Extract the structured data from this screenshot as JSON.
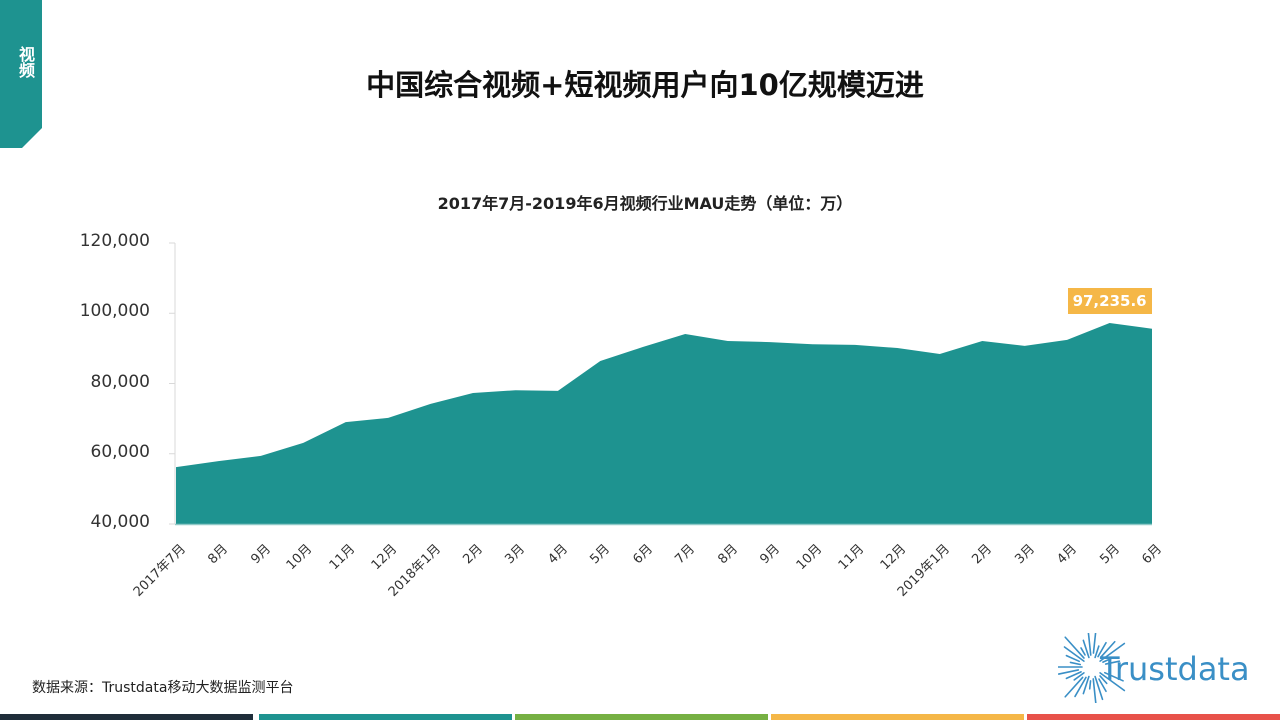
{
  "section_tab": {
    "label": "视频",
    "color": "#1e9390"
  },
  "page_title": "中国综合视频+短视频用户向10亿规模迈进",
  "chart_title": "2017年7月-2019年6月视频行业MAU走势（单位：万）",
  "highlight_label": "97,235.6",
  "source_note": "数据来源：Trustdata移动大数据监测平台",
  "logo": {
    "text": "Trustdata",
    "icon": "sunburst-icon",
    "color": "#3a8fc6"
  },
  "footer_colors": [
    "#1f2d3a",
    "#1e9390",
    "#76b043",
    "#f5b747",
    "#e8524a"
  ],
  "colors": {
    "area_fill": "#1e9390",
    "label_bg": "#f5b747",
    "axis": "#d9d9d9"
  },
  "chart_data": {
    "type": "area",
    "title": "2017年7月-2019年6月视频行业MAU走势（单位：万）",
    "xlabel": "",
    "ylabel": "",
    "ylim": [
      40000,
      120000
    ],
    "yticks": [
      "40,000",
      "60,000",
      "80,000",
      "100,000",
      "120,000"
    ],
    "grid": false,
    "legend": "none",
    "categories": [
      "2017年7月",
      "8月",
      "9月",
      "10月",
      "11月",
      "12月",
      "2018年1月",
      "2月",
      "3月",
      "4月",
      "5月",
      "6月",
      "7月",
      "8月",
      "9月",
      "10月",
      "11月",
      "12月",
      "2019年1月",
      "2月",
      "3月",
      "4月",
      "5月",
      "6月"
    ],
    "series": [
      {
        "name": "视频行业MAU",
        "values": [
          56200,
          57900,
          59400,
          63100,
          69000,
          70200,
          74200,
          77300,
          78100,
          77900,
          86400,
          90400,
          94100,
          92100,
          91800,
          91200,
          91000,
          90100,
          88400,
          92100,
          90700,
          92400,
          97235.6,
          95600
        ]
      }
    ],
    "annotations": [
      {
        "category": "5月",
        "index": 22,
        "text": "97,235.6"
      }
    ]
  }
}
